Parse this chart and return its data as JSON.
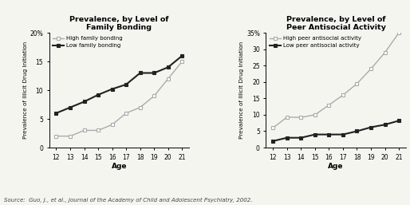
{
  "ages": [
    12,
    13,
    14,
    15,
    16,
    17,
    18,
    19,
    20,
    21
  ],
  "chart1": {
    "title": "Prevalence, by Level of\nFamily Bonding",
    "high_label": "High family bonding",
    "low_label": "Low family bonding",
    "high_color": "#aaaaaa",
    "low_color": "#222222",
    "high_values": [
      2,
      2,
      3,
      3,
      4,
      6,
      7,
      9,
      12,
      15
    ],
    "low_values": [
      6,
      7,
      8,
      9.2,
      10.2,
      11,
      13,
      13,
      14,
      16
    ],
    "ylabel": "Prevalence of Illicit Drug Initiation",
    "xlabel": "Age",
    "ylim": [
      0,
      20
    ],
    "yticks": [
      0,
      5,
      10,
      15,
      20
    ],
    "yticklabels": [
      "0",
      "5",
      "10",
      "15",
      "20%"
    ]
  },
  "chart2": {
    "title": "Prevalence, by Level of\nPeer Antisocial Activity",
    "high_label": "High peer antisocial activity",
    "low_label": "Low peer antisocial activity",
    "high_color": "#aaaaaa",
    "low_color": "#222222",
    "high_values": [
      6,
      9.3,
      9.2,
      10,
      13,
      16,
      19.5,
      24,
      29,
      35
    ],
    "low_values": [
      2,
      3,
      3,
      4,
      4,
      4,
      5,
      6.2,
      7,
      8.2
    ],
    "ylabel": "Prevalence of Illicit Drug Initiation",
    "xlabel": "Age",
    "ylim": [
      0,
      35
    ],
    "yticks": [
      0,
      5,
      10,
      15,
      20,
      25,
      30,
      35
    ],
    "yticklabels": [
      "0",
      "5",
      "10",
      "15",
      "20",
      "25",
      "30",
      "35%"
    ]
  },
  "source_text": "Source:  Guo, J., et al., Journal of the Academy of Child and Adolescent Psychiatry, 2002.",
  "background_color": "#f5f5f0"
}
